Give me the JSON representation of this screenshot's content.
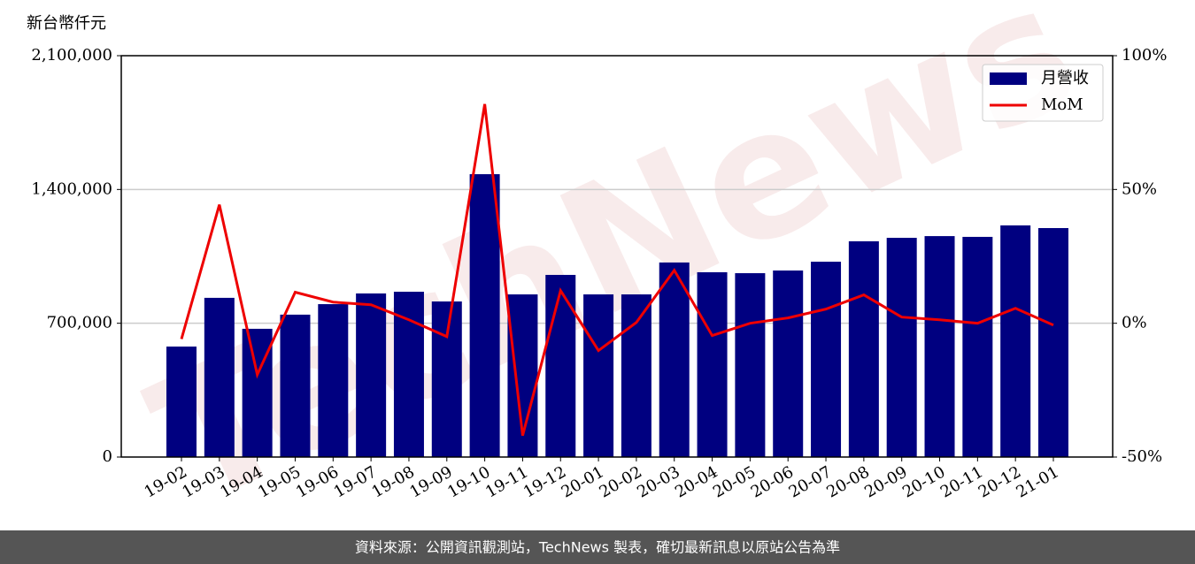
{
  "chart_data": {
    "type": "bar_line",
    "y_label": "新台幣仟元",
    "watermark": "TechNews",
    "footer": "資料來源：公開資訊觀測站，TechNews 製表，確切最新訊息以原站公告為準",
    "categories": [
      "19-02",
      "19-03",
      "19-04",
      "19-05",
      "19-06",
      "19-07",
      "19-08",
      "19-09",
      "19-10",
      "19-11",
      "19-12",
      "20-01",
      "20-02",
      "20-03",
      "20-04",
      "20-05",
      "20-06",
      "20-07",
      "20-08",
      "20-09",
      "20-10",
      "20-11",
      "20-12",
      "21-01"
    ],
    "series": [
      {
        "name": "月營收",
        "type": "bar",
        "color": "#000080",
        "values": [
          578000,
          833000,
          671000,
          745000,
          800000,
          856000,
          865000,
          814000,
          1480000,
          851000,
          953000,
          851000,
          851000,
          1018000,
          967000,
          962000,
          976000,
          1022000,
          1129000,
          1147000,
          1156000,
          1152000,
          1212000,
          1198000
        ]
      },
      {
        "name": "MoM",
        "type": "line",
        "axis": "y2",
        "color": "#ee0000",
        "values": [
          -5.9,
          44.3,
          -19.2,
          11.6,
          7.9,
          6.9,
          1.3,
          -5.0,
          81.9,
          -42,
          12.2,
          -10.2,
          0.3,
          19.8,
          -4.6,
          0,
          2,
          5.3,
          10.6,
          2.3,
          1.3,
          0,
          5.6,
          -0.7
        ]
      }
    ],
    "ylim": [
      0,
      2100000
    ],
    "yticks": [
      0,
      {
        "value": 700000,
        "label": "700,000"
      },
      {
        "value": 1400000,
        "label": "1,400,000"
      },
      {
        "value": 2100000,
        "label": "2,100,000"
      }
    ],
    "y2lim": [
      -50,
      100
    ],
    "y2ticks": [
      {
        "value": -50,
        "label": "-50%"
      },
      {
        "value": 0,
        "label": "0%"
      },
      {
        "value": 50,
        "label": "50%"
      },
      {
        "value": 100,
        "label": "100%"
      }
    ],
    "grid": true,
    "legend": "upper right"
  }
}
